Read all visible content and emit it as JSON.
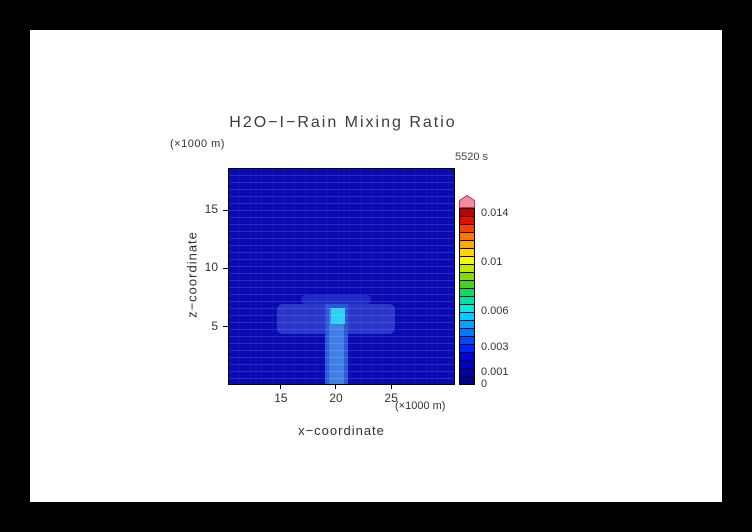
{
  "page": {
    "frame_color": "#000000",
    "canvas_color": "#ffffff",
    "text_color": "#303030"
  },
  "chart_data": {
    "type": "heatmap",
    "title": "H2O−I−Rain Mixing Ratio",
    "time": "5520 s",
    "xlabel": "x−coordinate",
    "ylabel": "z−coordinate",
    "x_unit": "(×1000 m)",
    "z_unit": "(×1000 m)",
    "x_range": [
      10.2,
      30.8
    ],
    "z_range": [
      0,
      18.6
    ],
    "x_ticks": [
      15,
      20,
      25
    ],
    "z_ticks": [
      5,
      10,
      15
    ],
    "grid": "horizontal-model-levels",
    "background_value": 0,
    "background_color": "#0a0ab2",
    "regions": [
      {
        "name": "anvil-outer",
        "x": [
          14.6,
          25.4
        ],
        "z": [
          4.3,
          6.9
        ],
        "value": 0.0004,
        "color": "#2b35c9"
      },
      {
        "name": "anvil-top",
        "x": [
          16.8,
          23.2
        ],
        "z": [
          6.9,
          7.7
        ],
        "value": 0.0003,
        "color": "#1f29c4"
      },
      {
        "name": "column-halo",
        "x": [
          19.0,
          21.1
        ],
        "z": [
          0,
          6.9
        ],
        "value": 0.0008,
        "color": "#2f55d8"
      },
      {
        "name": "column",
        "x": [
          19.4,
          20.7
        ],
        "z": [
          0,
          6.6
        ],
        "value": 0.0015,
        "color": "#3f7fe6"
      },
      {
        "name": "core",
        "x": [
          19.5,
          20.8
        ],
        "z": [
          5.2,
          6.6
        ],
        "value": 0.0035,
        "color": "#2bd2f2"
      }
    ],
    "colorbar": {
      "vmin": 0,
      "vmax": 0.0145,
      "tick_values": [
        0,
        0.001,
        0.003,
        0.006,
        0.01,
        0.014
      ],
      "tick_labels": [
        "0",
        "0.001",
        "0.003",
        "0.006",
        "0.01",
        "0.014"
      ],
      "colors": [
        "#00008c",
        "#0000a8",
        "#0000c4",
        "#0000e0",
        "#0020ff",
        "#0048ff",
        "#0078ff",
        "#00a4ff",
        "#00ccff",
        "#00e8e0",
        "#00e0a0",
        "#10d860",
        "#48d020",
        "#88d800",
        "#c0e800",
        "#f8f800",
        "#ffd400",
        "#ffa800",
        "#ff7400",
        "#ff3c00",
        "#e01000",
        "#c00000"
      ],
      "arrow_fill": "#ee8ca0",
      "arrow_edge": "#c23052"
    }
  }
}
